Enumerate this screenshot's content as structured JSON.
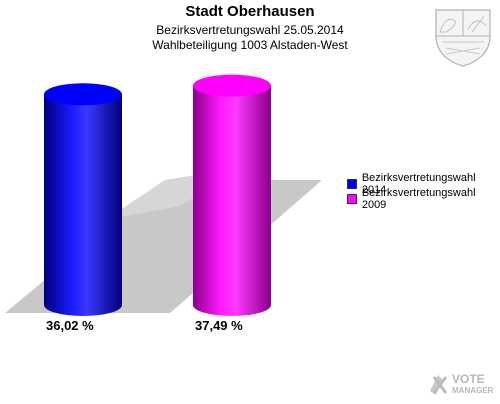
{
  "header": {
    "title": "Stadt Oberhausen",
    "subtitle": "Bezirksvertretungswahl 25.05.2014",
    "subtitle2": "Wahlbeteiligung 1003 Alstaden-West"
  },
  "chart_data": {
    "type": "bar",
    "categories": [
      "Bezirksvertretungswahl 2014",
      "Bezirksvertretungswahl 2009"
    ],
    "values": [
      36.02,
      37.49
    ],
    "value_labels": [
      "36,02 %",
      "37,49 %"
    ],
    "colors": [
      "#0000ff",
      "#ff00ff"
    ],
    "ylim": [
      0,
      40
    ],
    "legend": {
      "placement": "right",
      "entries": [
        "Bezirksvertretungswahl 2014",
        "Bezirksvertretungswahl 2009"
      ]
    }
  },
  "branding": {
    "crest_icon": "nrw-coat-of-arms-icon",
    "logo_line1": "VOTE",
    "logo_line2": "MANAGER"
  }
}
